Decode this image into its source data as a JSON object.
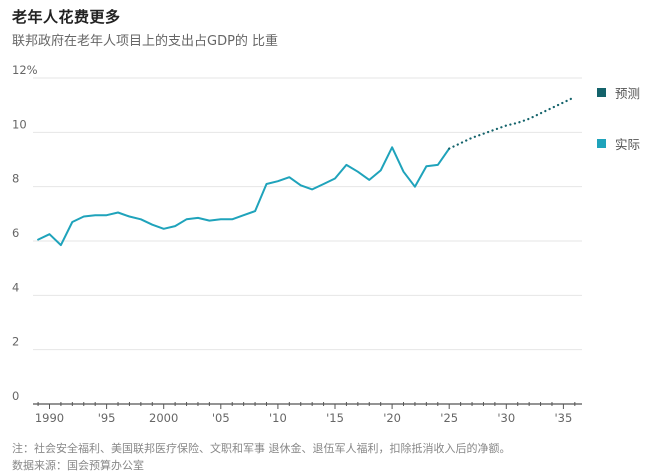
{
  "header": {
    "title": "老年人花费更多",
    "subtitle": "联邦政府在老年人项目上的支出占GDP的 比重"
  },
  "legend": {
    "items": [
      {
        "label": "预测",
        "color": "#14636b"
      },
      {
        "label": "实际",
        "color": "#1fa3bb"
      }
    ]
  },
  "footer": {
    "note": "注：社会安全福利、美国联邦医疗保险、文职和军事 退休金、退伍军人福利，扣除抵消收入后的净额。",
    "source": "数据来源：国会预算办公室"
  },
  "chart_data": {
    "type": "line",
    "title": "老年人花费更多",
    "subtitle": "联邦政府在老年人项目上的支出占GDP的 比重",
    "xlabel": "",
    "ylabel": "%",
    "ylim": [
      0,
      12
    ],
    "xlim": [
      1988.5,
      2036.5
    ],
    "yticks": [
      "0",
      "2",
      "4",
      "6",
      "8",
      "10",
      "12%"
    ],
    "ytick_values": [
      0,
      2,
      4,
      6,
      8,
      10,
      12
    ],
    "xticks": [
      "1990",
      "'95",
      "2000",
      "'05",
      "'10",
      "'15",
      "'20",
      "'25",
      "'30",
      "'35"
    ],
    "xtick_values": [
      1990,
      1995,
      2000,
      2005,
      2010,
      2015,
      2020,
      2025,
      2030,
      2035
    ],
    "grid": "horizontal",
    "legend_position": "right",
    "series": [
      {
        "name": "实际",
        "style": "solid",
        "color": "#1fa3bb",
        "x": [
          1989,
          1990,
          1991,
          1992,
          1993,
          1994,
          1995,
          1996,
          1997,
          1998,
          1999,
          2000,
          2001,
          2002,
          2003,
          2004,
          2005,
          2006,
          2007,
          2008,
          2009,
          2010,
          2011,
          2012,
          2013,
          2014,
          2015,
          2016,
          2017,
          2018,
          2019,
          2020,
          2021,
          2022,
          2023,
          2024,
          2025
        ],
        "values": [
          6.05,
          6.25,
          5.85,
          6.7,
          6.9,
          6.95,
          6.95,
          7.05,
          6.9,
          6.8,
          6.6,
          6.45,
          6.55,
          6.8,
          6.85,
          6.75,
          6.8,
          6.8,
          6.95,
          7.1,
          8.1,
          8.2,
          8.35,
          8.05,
          7.9,
          8.1,
          8.3,
          8.8,
          8.55,
          8.25,
          8.6,
          9.45,
          8.55,
          8.0,
          8.75,
          8.8,
          9.4
        ]
      },
      {
        "name": "预测",
        "style": "dotted",
        "color": "#14636b",
        "x": [
          2025,
          2026,
          2027,
          2028,
          2029,
          2030,
          2031,
          2032,
          2033,
          2034,
          2035,
          2036
        ],
        "values": [
          9.4,
          9.6,
          9.8,
          9.95,
          10.1,
          10.25,
          10.35,
          10.5,
          10.7,
          10.9,
          11.1,
          11.3
        ]
      }
    ]
  }
}
